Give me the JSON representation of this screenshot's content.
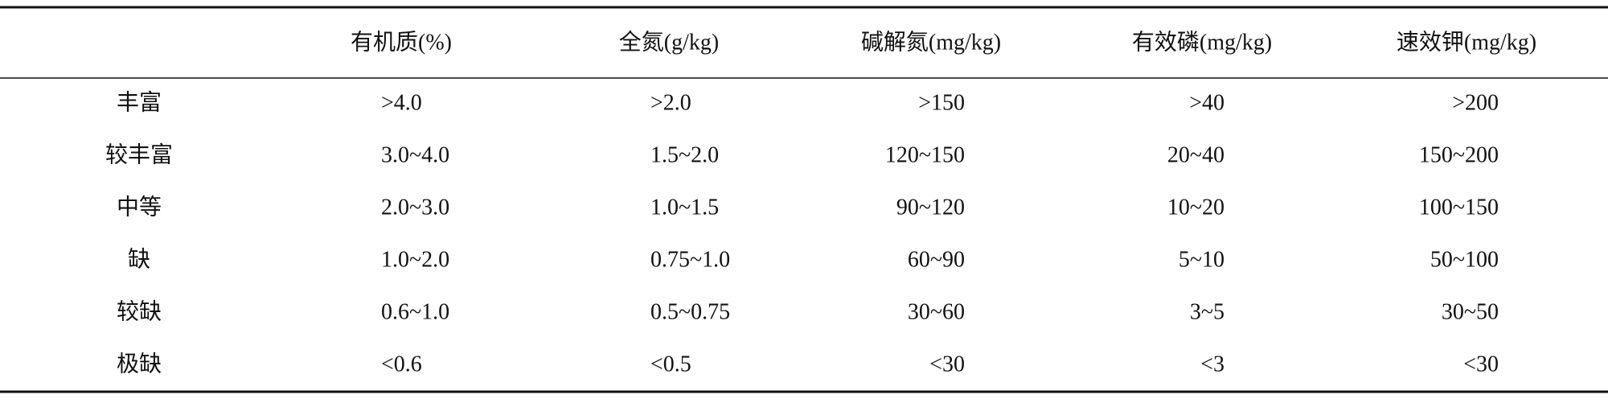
{
  "table": {
    "header": [
      "有机质(%)",
      "全氮(g/kg)",
      "碱解氮(mg/kg)",
      "有效磷(mg/kg)",
      "速效钾(mg/kg)"
    ],
    "rows": [
      [
        "丰富",
        ">4.0",
        ">2.0",
        ">150",
        ">40",
        ">200"
      ],
      [
        "较丰富",
        "3.0~4.0",
        "1.5~2.0",
        "120~150",
        "20~40",
        "150~200"
      ],
      [
        "中等",
        "2.0~3.0",
        "1.0~1.5",
        "90~120",
        "10~20",
        "100~150"
      ],
      [
        "缺",
        "1.0~2.0",
        "0.75~1.0",
        "60~90",
        "5~10",
        "50~100"
      ],
      [
        "较缺",
        "0.6~1.0",
        "0.5~0.75",
        "30~60",
        "3~5",
        "30~50"
      ],
      [
        "极缺",
        "<0.6",
        "<0.5",
        "<30",
        "<3",
        "<30"
      ]
    ]
  }
}
